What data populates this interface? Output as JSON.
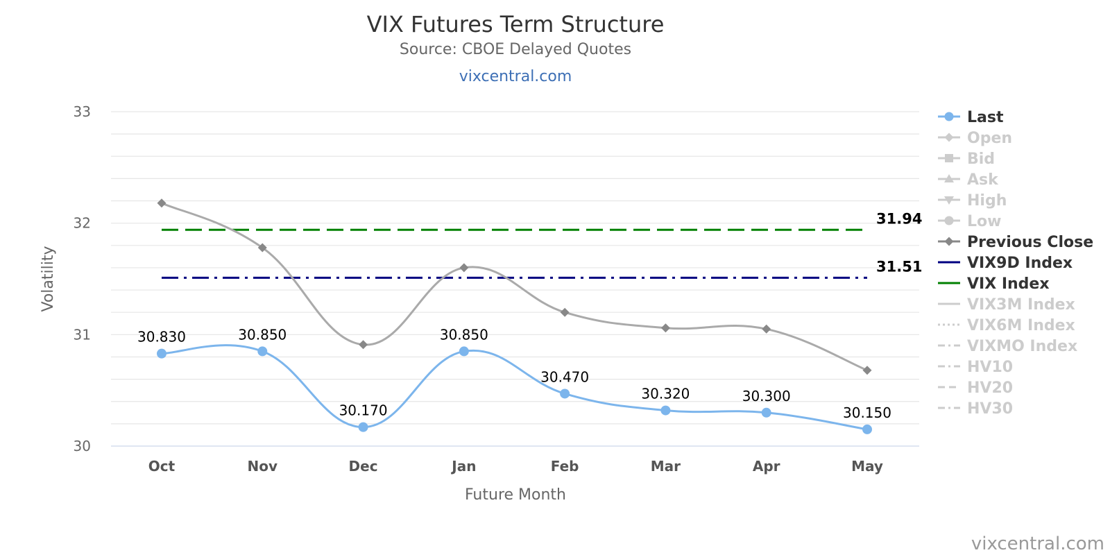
{
  "chart_data": {
    "type": "line",
    "title": "VIX Futures Term Structure",
    "subtitle": "Source: CBOE Delayed Quotes",
    "site_link": "vixcentral.com",
    "credit": "vixcentral.com",
    "xlabel": "Future Month",
    "ylabel": "Volatility",
    "categories": [
      "Oct",
      "Nov",
      "Dec",
      "Jan",
      "Feb",
      "Mar",
      "Apr",
      "May"
    ],
    "ylim": [
      30,
      33
    ],
    "yticks": [
      "30",
      "31",
      "32",
      "33"
    ],
    "grid": true,
    "legend_position": "right",
    "series": [
      {
        "name": "Last",
        "values": [
          30.83,
          30.85,
          30.17,
          30.85,
          30.47,
          30.32,
          30.3,
          30.15
        ],
        "labels": [
          "30.830",
          "30.850",
          "30.170",
          "30.850",
          "30.470",
          "30.320",
          "30.300",
          "30.150"
        ],
        "color": "#7cb5ec",
        "marker": "circle"
      },
      {
        "name": "Previous Close",
        "values": [
          32.18,
          31.78,
          30.91,
          31.6,
          31.2,
          31.06,
          31.05,
          30.68
        ],
        "color": "#aaaaaa",
        "marker": "diamond"
      }
    ],
    "reference_lines": [
      {
        "name": "VIX Index",
        "value": 31.94,
        "label": "31.94",
        "color": "#008000",
        "style": "dash"
      },
      {
        "name": "VIX9D Index",
        "value": 31.51,
        "label": "31.51",
        "color": "#000080",
        "style": "dashdot"
      }
    ],
    "legend": [
      {
        "name": "Last",
        "active": true,
        "color": "#7cb5ec",
        "symbol": "circle",
        "line": "solid"
      },
      {
        "name": "Open",
        "active": false,
        "color": "#cccccc",
        "symbol": "diamond",
        "line": "solid"
      },
      {
        "name": "Bid",
        "active": false,
        "color": "#cccccc",
        "symbol": "square",
        "line": "solid"
      },
      {
        "name": "Ask",
        "active": false,
        "color": "#cccccc",
        "symbol": "triangle",
        "line": "solid"
      },
      {
        "name": "High",
        "active": false,
        "color": "#cccccc",
        "symbol": "triangle-down",
        "line": "solid"
      },
      {
        "name": "Low",
        "active": false,
        "color": "#cccccc",
        "symbol": "circle",
        "line": "solid"
      },
      {
        "name": "Previous Close",
        "active": true,
        "color": "#888888",
        "symbol": "diamond",
        "line": "solid"
      },
      {
        "name": "VIX9D Index",
        "active": true,
        "color": "#000080",
        "symbol": "none",
        "line": "solid"
      },
      {
        "name": "VIX Index",
        "active": true,
        "color": "#008000",
        "symbol": "none",
        "line": "solid"
      },
      {
        "name": "VIX3M Index",
        "active": false,
        "color": "#cccccc",
        "symbol": "none",
        "line": "solid"
      },
      {
        "name": "VIX6M Index",
        "active": false,
        "color": "#cccccc",
        "symbol": "none",
        "line": "dotted"
      },
      {
        "name": "VIXMO Index",
        "active": false,
        "color": "#cccccc",
        "symbol": "none",
        "line": "dashdot"
      },
      {
        "name": "HV10",
        "active": false,
        "color": "#cccccc",
        "symbol": "none",
        "line": "dashdot"
      },
      {
        "name": "HV20",
        "active": false,
        "color": "#cccccc",
        "symbol": "none",
        "line": "dash"
      },
      {
        "name": "HV30",
        "active": false,
        "color": "#cccccc",
        "symbol": "none",
        "line": "dashdot"
      }
    ]
  }
}
